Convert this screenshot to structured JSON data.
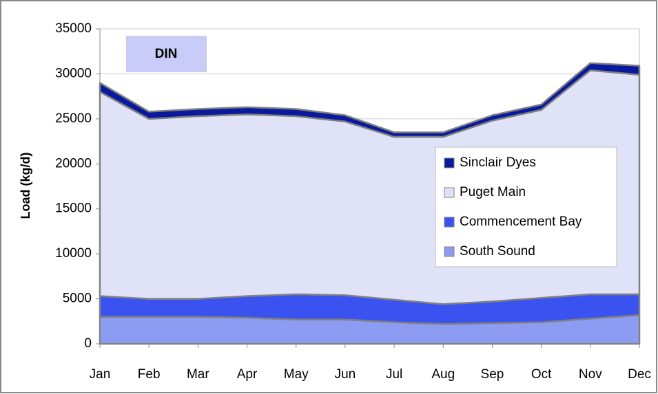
{
  "chart_data": {
    "type": "stacked_area",
    "annotation": "DIN",
    "y_label": "Load (kg/d)",
    "categories": [
      "Jan",
      "Feb",
      "Mar",
      "Apr",
      "May",
      "Jun",
      "Jul",
      "Aug",
      "Sep",
      "Oct",
      "Nov",
      "Dec"
    ],
    "series": [
      {
        "name": "South Sound",
        "color": "#8c9cf2",
        "values": [
          3000,
          3000,
          3000,
          2900,
          2700,
          2700,
          2400,
          2200,
          2300,
          2400,
          2800,
          3200
        ]
      },
      {
        "name": "Commencement Bay",
        "color": "#3a52f0",
        "values": [
          2300,
          2000,
          2000,
          2400,
          2800,
          2700,
          2500,
          2200,
          2400,
          2700,
          2700,
          2300
        ]
      },
      {
        "name": "Puget Main",
        "color": "#e0e2f8",
        "values": [
          22700,
          20000,
          20300,
          20200,
          19800,
          19300,
          18100,
          18600,
          20100,
          20900,
          24900,
          24400
        ]
      },
      {
        "name": "Sinclair Dyes",
        "color": "#0a1a9e",
        "values": [
          1000,
          800,
          800,
          800,
          800,
          700,
          500,
          500,
          600,
          600,
          800,
          1000
        ]
      }
    ],
    "ylim": [
      0,
      35000
    ],
    "yticks": [
      0,
      5000,
      10000,
      15000,
      20000,
      25000,
      30000,
      35000
    ],
    "grid": true
  }
}
